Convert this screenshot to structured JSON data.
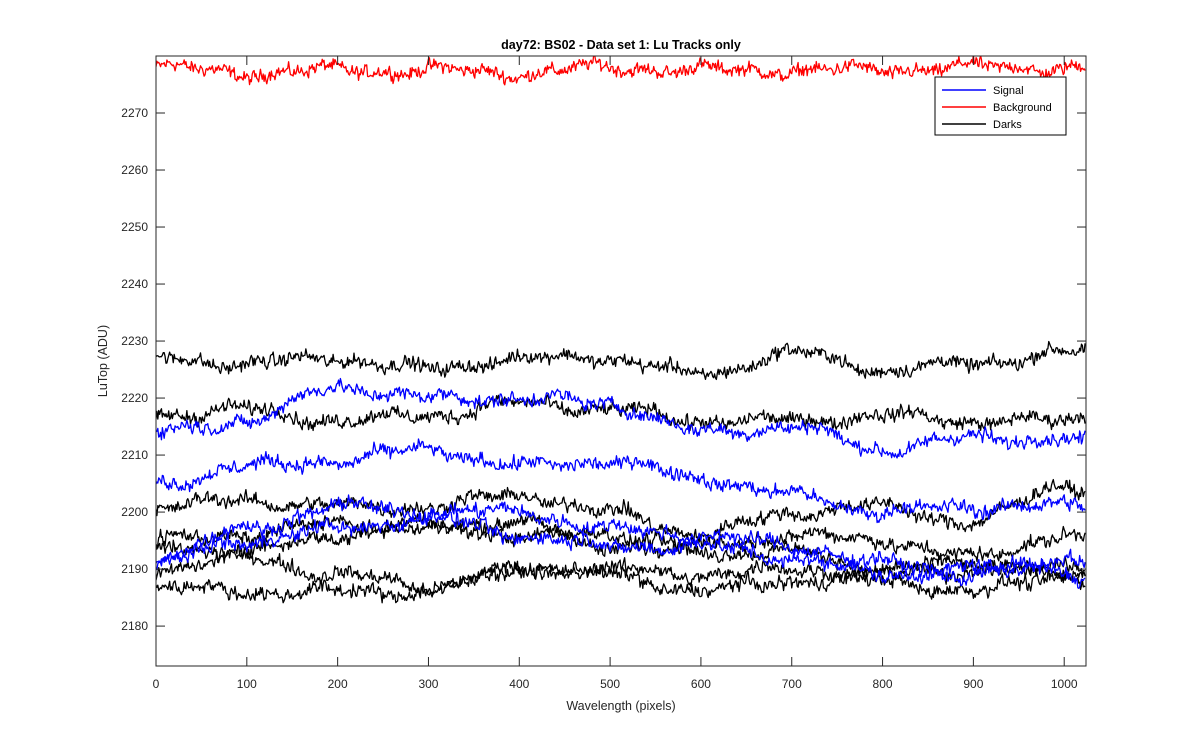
{
  "chart_data": {
    "type": "line",
    "title": "day72: BS02 - Data set 1: Lu Tracks only",
    "xlabel": "Wavelength (pixels)",
    "ylabel": "LuTop (ADU)",
    "xlim": [
      0,
      1024
    ],
    "ylim": [
      2173,
      2280
    ],
    "xticks": [
      0,
      100,
      200,
      300,
      400,
      500,
      600,
      700,
      800,
      900,
      1000
    ],
    "yticks": [
      2180,
      2190,
      2200,
      2210,
      2220,
      2230,
      2240,
      2250,
      2260,
      2270
    ],
    "grid": false,
    "legend": {
      "placement": "top-right",
      "entries": [
        {
          "label": "Signal",
          "color": "#0000ff"
        },
        {
          "label": "Background",
          "color": "#ff0000"
        },
        {
          "label": "Darks",
          "color": "#000000"
        }
      ]
    },
    "n_points": 1024,
    "noise_amplitude_adu": 1.0,
    "series": [
      {
        "group": "Background",
        "color": "#ff0000",
        "x": [
          0,
          100,
          200,
          300,
          400,
          500,
          600,
          700,
          800,
          900,
          1000,
          1023
        ],
        "y": [
          2278,
          2277,
          2277.5,
          2277.5,
          2277,
          2278,
          2277.5,
          2277.5,
          2277.5,
          2278,
          2278,
          2278
        ]
      },
      {
        "group": "Darks",
        "color": "#000000",
        "x": [
          0,
          100,
          200,
          300,
          400,
          500,
          600,
          700,
          800,
          900,
          1000,
          1023
        ],
        "y": [
          2227,
          2226,
          2227,
          2225,
          2227,
          2227,
          2224,
          2228,
          2225,
          2226,
          2228,
          2228
        ]
      },
      {
        "group": "Darks",
        "color": "#000000",
        "x": [
          0,
          100,
          200,
          300,
          400,
          500,
          600,
          700,
          800,
          900,
          1000,
          1023
        ],
        "y": [
          2217,
          2218,
          2216,
          2217,
          2219,
          2218,
          2216,
          2216,
          2217,
          2216,
          2216,
          2217
        ]
      },
      {
        "group": "Darks",
        "color": "#000000",
        "x": [
          0,
          100,
          200,
          300,
          400,
          500,
          600,
          700,
          800,
          900,
          1000,
          1023
        ],
        "y": [
          2201,
          2202,
          2201,
          2201,
          2203,
          2200,
          2196,
          2200,
          2201,
          2198,
          2205,
          2204
        ]
      },
      {
        "group": "Darks",
        "color": "#000000",
        "x": [
          0,
          100,
          200,
          300,
          400,
          500,
          600,
          700,
          800,
          900,
          1000,
          1023
        ],
        "y": [
          2195,
          2196,
          2198,
          2197,
          2196,
          2196,
          2194,
          2196,
          2195,
          2192,
          2196,
          2195
        ]
      },
      {
        "group": "Darks",
        "color": "#000000",
        "x": [
          0,
          100,
          200,
          300,
          400,
          500,
          600,
          700,
          800,
          900,
          1000,
          1023
        ],
        "y": [
          2194,
          2193,
          2196,
          2198,
          2198,
          2194,
          2193,
          2193,
          2190,
          2191,
          2190,
          2190
        ]
      },
      {
        "group": "Darks",
        "color": "#000000",
        "x": [
          0,
          100,
          200,
          300,
          400,
          500,
          600,
          700,
          800,
          900,
          1000,
          1023
        ],
        "y": [
          2190,
          2192,
          2189,
          2187,
          2190,
          2190,
          2189,
          2190,
          2189,
          2190,
          2189,
          2189
        ]
      },
      {
        "group": "Darks",
        "color": "#000000",
        "x": [
          0,
          100,
          200,
          300,
          400,
          500,
          600,
          700,
          800,
          900,
          1000,
          1023
        ],
        "y": [
          2187,
          2186,
          2186,
          2186,
          2190,
          2189,
          2186,
          2188,
          2188,
          2186,
          2189,
          2188
        ]
      },
      {
        "group": "Signal",
        "color": "#0000ff",
        "x": [
          0,
          100,
          200,
          300,
          400,
          500,
          600,
          700,
          800,
          900,
          1000,
          1023
        ],
        "y": [
          2214,
          2216,
          2222,
          2220,
          2220,
          2219,
          2214,
          2215,
          2211,
          2213,
          2213,
          2212
        ]
      },
      {
        "group": "Signal",
        "color": "#0000ff",
        "x": [
          0,
          100,
          200,
          300,
          400,
          500,
          600,
          700,
          800,
          900,
          1000,
          1023
        ],
        "y": [
          2205,
          2208,
          2209,
          2211,
          2208,
          2209,
          2206,
          2203,
          2200,
          2201,
          2201,
          2201
        ]
      },
      {
        "group": "Signal",
        "color": "#0000ff",
        "x": [
          0,
          100,
          200,
          300,
          400,
          500,
          600,
          700,
          800,
          900,
          1000,
          1023
        ],
        "y": [
          2192,
          2197,
          2201,
          2200,
          2200,
          2197,
          2196,
          2194,
          2191,
          2189,
          2190,
          2188
        ]
      },
      {
        "group": "Signal",
        "color": "#0000ff",
        "x": [
          0,
          100,
          200,
          300,
          400,
          500,
          600,
          700,
          800,
          900,
          1000,
          1023
        ],
        "y": [
          2191,
          2195,
          2197,
          2199,
          2196,
          2194,
          2194,
          2192,
          2189,
          2190,
          2192,
          2191
        ]
      }
    ]
  }
}
